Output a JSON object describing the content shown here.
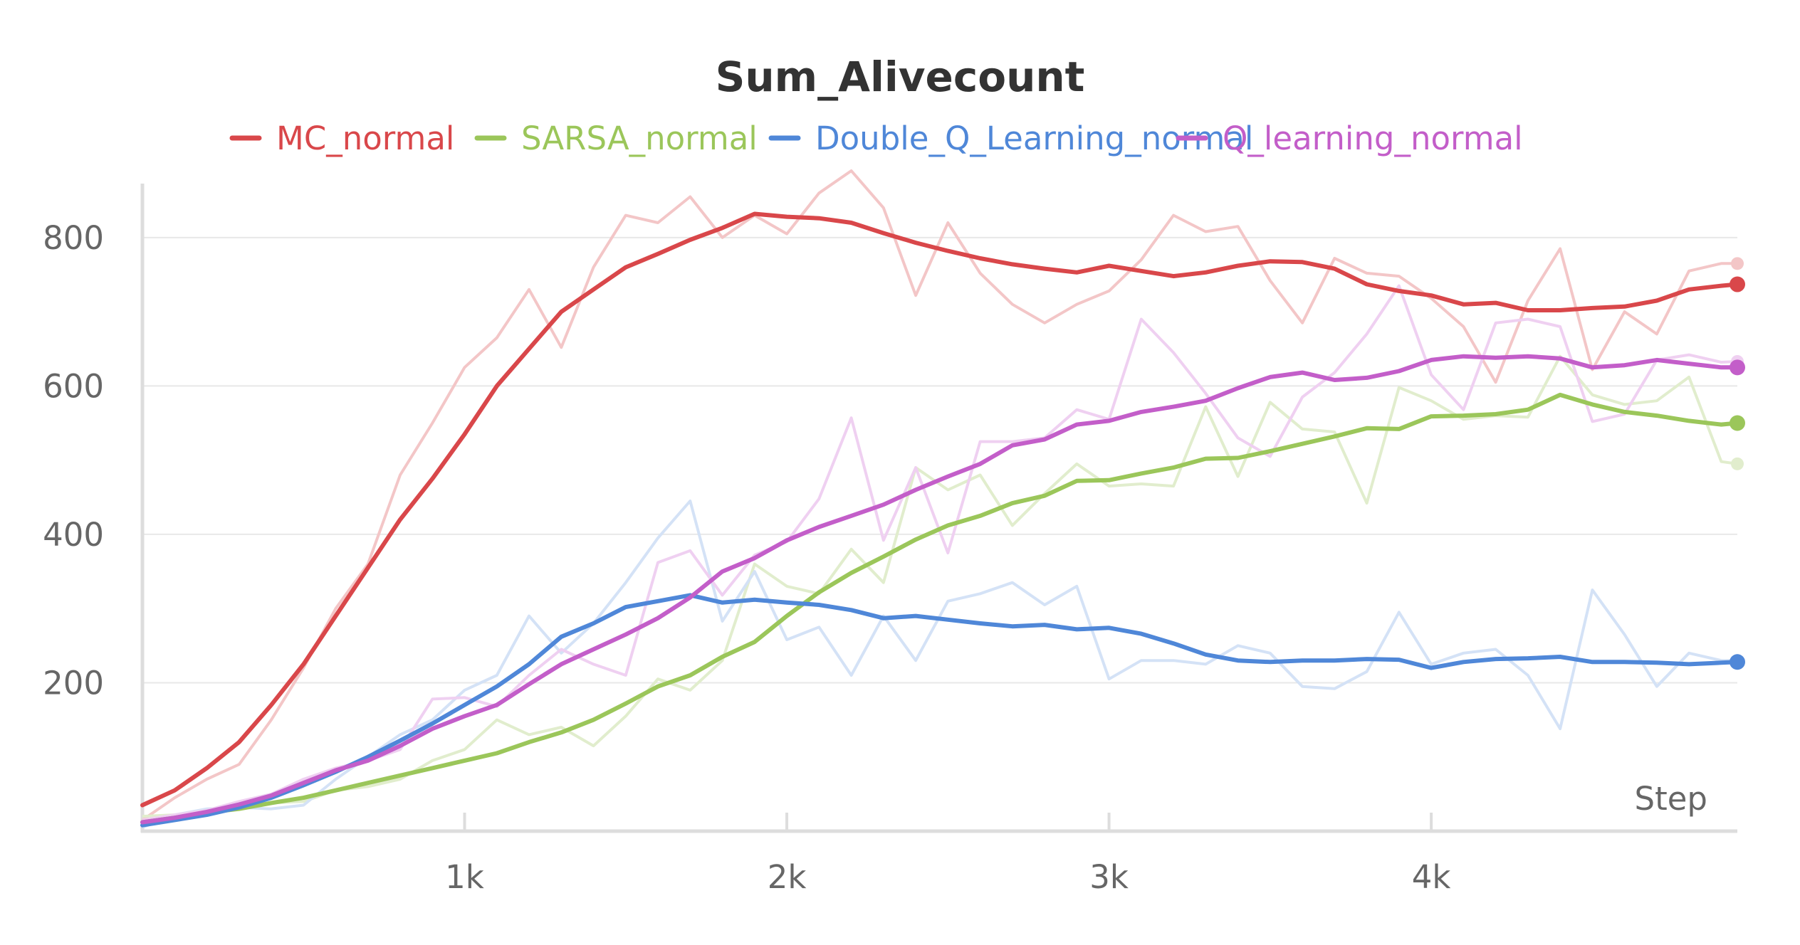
{
  "chart_data": {
    "type": "line",
    "title": "Sum_Alivecount",
    "xlabel": "Step",
    "ylabel": "",
    "xlim": [
      0,
      4950
    ],
    "ylim": [
      0,
      890
    ],
    "x_ticks": [
      1000,
      2000,
      3000,
      4000
    ],
    "x_tick_labels": [
      "1k",
      "2k",
      "3k",
      "4k"
    ],
    "y_ticks": [
      200,
      400,
      600,
      800
    ],
    "y_tick_labels": [
      "200",
      "400",
      "600",
      "800"
    ],
    "grid": true,
    "legend_position": "top",
    "series": [
      {
        "name": "MC_normal",
        "color": "#d9474a",
        "raw_color": "#f3c6c7",
        "x": [
          0,
          100,
          200,
          300,
          400,
          500,
          600,
          700,
          800,
          900,
          1000,
          1100,
          1200,
          1300,
          1400,
          1500,
          1600,
          1700,
          1800,
          1900,
          2000,
          2100,
          2200,
          2300,
          2400,
          2500,
          2600,
          2700,
          2800,
          2900,
          3000,
          3100,
          3200,
          3300,
          3400,
          3500,
          3600,
          3700,
          3800,
          3900,
          4000,
          4100,
          4200,
          4300,
          4400,
          4500,
          4600,
          4700,
          4800,
          4900,
          4950
        ],
        "values": [
          35,
          55,
          85,
          120,
          170,
          225,
          290,
          355,
          420,
          475,
          535,
          600,
          650,
          700,
          730,
          760,
          778,
          797,
          813,
          832,
          828,
          826,
          820,
          806,
          793,
          782,
          772,
          764,
          758,
          753,
          762,
          755,
          748,
          753,
          762,
          768,
          767,
          758,
          737,
          728,
          722,
          710,
          712,
          702,
          702,
          705,
          707,
          715,
          730,
          735,
          737
        ],
        "raw_values": [
          15,
          45,
          70,
          90,
          150,
          220,
          300,
          360,
          480,
          550,
          625,
          665,
          730,
          652,
          760,
          830,
          820,
          855,
          800,
          830,
          805,
          860,
          890,
          840,
          722,
          820,
          752,
          710,
          685,
          710,
          728,
          770,
          830,
          808,
          815,
          742,
          685,
          772,
          752,
          748,
          718,
          680,
          605,
          715,
          785,
          622,
          700,
          670,
          755,
          765,
          765
        ]
      },
      {
        "name": "SARSA_normal",
        "color": "#9bc65a",
        "raw_color": "#e1edcd",
        "x": [
          0,
          100,
          200,
          300,
          400,
          500,
          600,
          700,
          800,
          900,
          1000,
          1100,
          1200,
          1300,
          1400,
          1500,
          1600,
          1700,
          1800,
          1900,
          2000,
          2100,
          2200,
          2300,
          2400,
          2500,
          2600,
          2700,
          2800,
          2900,
          3000,
          3100,
          3200,
          3300,
          3400,
          3500,
          3600,
          3700,
          3800,
          3900,
          4000,
          4100,
          4200,
          4300,
          4400,
          4500,
          4600,
          4700,
          4800,
          4900,
          4950
        ],
        "values": [
          12,
          18,
          25,
          30,
          38,
          45,
          55,
          65,
          75,
          85,
          95,
          105,
          120,
          133,
          150,
          172,
          195,
          210,
          235,
          255,
          290,
          322,
          348,
          370,
          393,
          412,
          425,
          442,
          452,
          472,
          473,
          482,
          490,
          502,
          503,
          512,
          522,
          532,
          543,
          542,
          559,
          560,
          562,
          568,
          588,
          575,
          565,
          560,
          553,
          548,
          550
        ],
        "raw_values": [
          20,
          22,
          25,
          30,
          38,
          40,
          55,
          60,
          70,
          95,
          110,
          150,
          130,
          140,
          115,
          155,
          205,
          190,
          230,
          360,
          330,
          320,
          380,
          335,
          490,
          460,
          480,
          412,
          455,
          495,
          465,
          468,
          465,
          572,
          478,
          578,
          542,
          538,
          442,
          598,
          580,
          555,
          560,
          558,
          640,
          588,
          575,
          580,
          612,
          498,
          495
        ]
      },
      {
        "name": "Double_Q_Learning_normal",
        "color": "#4f87d8",
        "raw_color": "#d4e2f6",
        "x": [
          0,
          100,
          200,
          300,
          400,
          500,
          600,
          700,
          800,
          900,
          1000,
          1100,
          1200,
          1300,
          1400,
          1500,
          1600,
          1700,
          1800,
          1900,
          2000,
          2100,
          2200,
          2300,
          2400,
          2500,
          2600,
          2700,
          2800,
          2900,
          3000,
          3100,
          3200,
          3300,
          3400,
          3500,
          3600,
          3700,
          3800,
          3900,
          4000,
          4100,
          4200,
          4300,
          4400,
          4500,
          4600,
          4700,
          4800,
          4900,
          4950
        ],
        "values": [
          8,
          15,
          22,
          32,
          45,
          62,
          80,
          100,
          122,
          145,
          170,
          195,
          225,
          262,
          280,
          302,
          310,
          318,
          308,
          312,
          308,
          305,
          298,
          287,
          290,
          285,
          280,
          276,
          278,
          272,
          274,
          266,
          253,
          238,
          230,
          228,
          230,
          230,
          232,
          231,
          220,
          228,
          232,
          233,
          235,
          228,
          228,
          227,
          225,
          227,
          228
        ],
        "raw_values": [
          5,
          22,
          30,
          32,
          30,
          35,
          70,
          100,
          130,
          150,
          190,
          210,
          290,
          240,
          280,
          335,
          395,
          445,
          283,
          350,
          258,
          275,
          210,
          290,
          230,
          310,
          320,
          335,
          305,
          330,
          205,
          230,
          230,
          225,
          250,
          240,
          195,
          192,
          215,
          295,
          225,
          240,
          245,
          210,
          138,
          325,
          265,
          195,
          240,
          230,
          230
        ]
      },
      {
        "name": "Q_learning_normal",
        "color": "#c35ec9",
        "raw_color": "#efd0f1",
        "x": [
          0,
          100,
          200,
          300,
          400,
          500,
          600,
          700,
          800,
          900,
          1000,
          1100,
          1200,
          1300,
          1400,
          1500,
          1600,
          1700,
          1800,
          1900,
          2000,
          2100,
          2200,
          2300,
          2400,
          2500,
          2600,
          2700,
          2800,
          2900,
          3000,
          3100,
          3200,
          3300,
          3400,
          3500,
          3600,
          3700,
          3800,
          3900,
          4000,
          4100,
          4200,
          4300,
          4400,
          4500,
          4600,
          4700,
          4800,
          4900,
          4950
        ],
        "values": [
          12,
          18,
          26,
          36,
          48,
          65,
          82,
          95,
          115,
          138,
          155,
          170,
          198,
          225,
          245,
          265,
          287,
          315,
          350,
          368,
          392,
          410,
          425,
          440,
          460,
          478,
          495,
          520,
          528,
          548,
          553,
          565,
          572,
          580,
          597,
          612,
          618,
          608,
          611,
          620,
          635,
          640,
          638,
          640,
          637,
          625,
          628,
          635,
          630,
          625,
          625
        ],
        "raw_values": [
          15,
          22,
          28,
          40,
          50,
          70,
          85,
          95,
          110,
          178,
          180,
          168,
          210,
          245,
          225,
          210,
          362,
          378,
          318,
          372,
          390,
          448,
          557,
          392,
          490,
          375,
          525,
          525,
          530,
          568,
          555,
          690,
          645,
          590,
          530,
          505,
          585,
          618,
          670,
          735,
          615,
          568,
          685,
          690,
          680,
          552,
          562,
          635,
          642,
          632,
          633
        ]
      }
    ]
  }
}
